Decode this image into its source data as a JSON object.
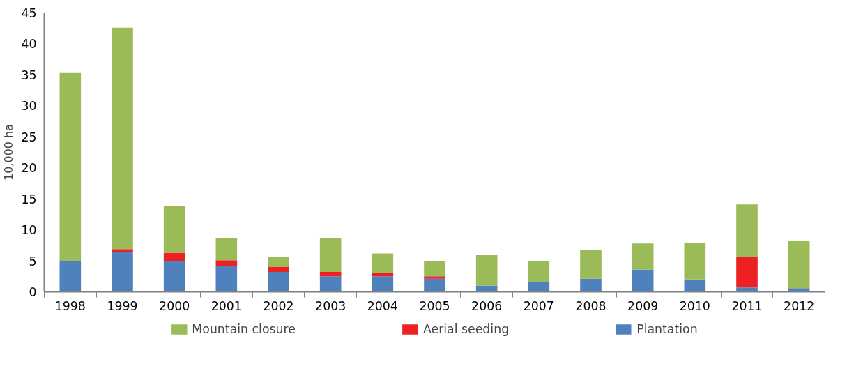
{
  "chart_data": {
    "type": "bar",
    "stacked": true,
    "ylabel": "10,000 ha",
    "categories": [
      "1998",
      "1999",
      "2000",
      "2001",
      "2002",
      "2003",
      "2004",
      "2005",
      "2006",
      "2007",
      "2008",
      "2009",
      "2010",
      "2011",
      "2012"
    ],
    "series": [
      {
        "name": "Plantation",
        "color": "#4f81bd",
        "values": [
          5.0,
          6.4,
          4.9,
          4.1,
          3.2,
          2.5,
          2.5,
          2.1,
          1.0,
          1.6,
          2.1,
          3.6,
          2.0,
          0.7,
          0.6
        ]
      },
      {
        "name": "Aerial seeding",
        "color": "#ed2024",
        "values": [
          0,
          0.5,
          1.4,
          1.0,
          0.8,
          0.7,
          0.6,
          0.4,
          0,
          0,
          0,
          0,
          0,
          4.9,
          0
        ]
      },
      {
        "name": "Mountain closure",
        "color": "#9bbb59",
        "values": [
          30.4,
          35.7,
          7.6,
          3.5,
          1.6,
          5.5,
          3.1,
          2.5,
          4.9,
          3.4,
          4.7,
          4.2,
          5.9,
          8.5,
          7.6
        ]
      }
    ],
    "ylim": [
      0,
      45
    ],
    "yticks": [
      0,
      5,
      10,
      15,
      20,
      25,
      30,
      35,
      40,
      45
    ],
    "grid": false,
    "legend": "bottom"
  }
}
